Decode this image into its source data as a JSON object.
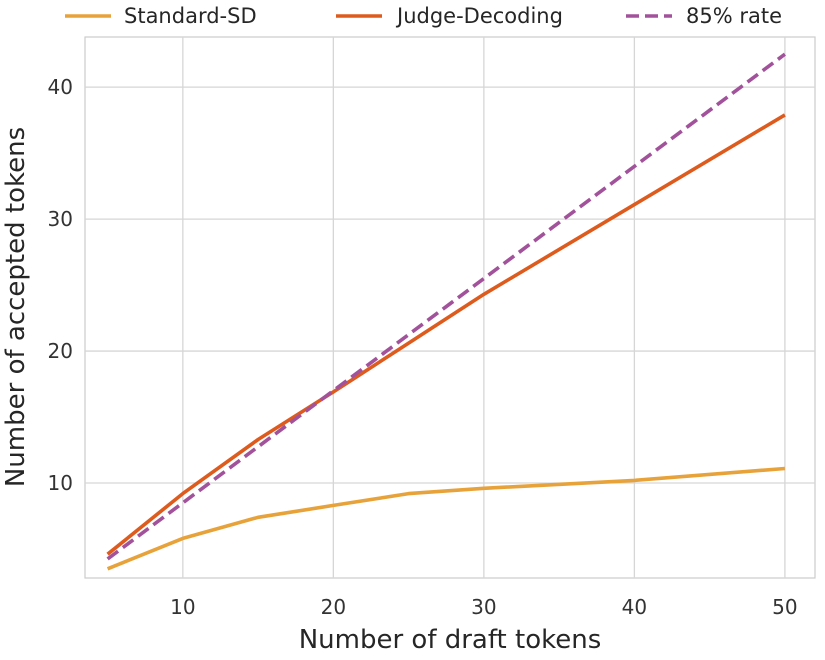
{
  "chart_data": {
    "type": "line",
    "xlabel": "Number of draft tokens",
    "ylabel": "Number of accepted tokens",
    "xlim": [
      3.5,
      52
    ],
    "ylim": [
      2.8,
      43.8
    ],
    "xticks": [
      10,
      20,
      30,
      40,
      50
    ],
    "yticks": [
      10,
      20,
      30,
      40
    ],
    "grid": true,
    "legend_position": "top",
    "series": [
      {
        "name": "Standard-SD",
        "color": "#e8a23a",
        "dash": false,
        "x": [
          5,
          10,
          15,
          20,
          25,
          30,
          40,
          50
        ],
        "y": [
          3.5,
          5.8,
          7.4,
          8.3,
          9.2,
          9.6,
          10.2,
          11.1
        ]
      },
      {
        "name": "Judge-Decoding",
        "color": "#de5b1e",
        "dash": false,
        "x": [
          5,
          10,
          15,
          20,
          25,
          30,
          40,
          50
        ],
        "y": [
          4.6,
          9.2,
          13.3,
          16.9,
          20.6,
          24.3,
          31.1,
          37.9
        ]
      },
      {
        "name": "85% rate",
        "color": "#a2529b",
        "dash": true,
        "x": [
          5,
          50
        ],
        "y": [
          4.25,
          42.5
        ]
      }
    ]
  }
}
